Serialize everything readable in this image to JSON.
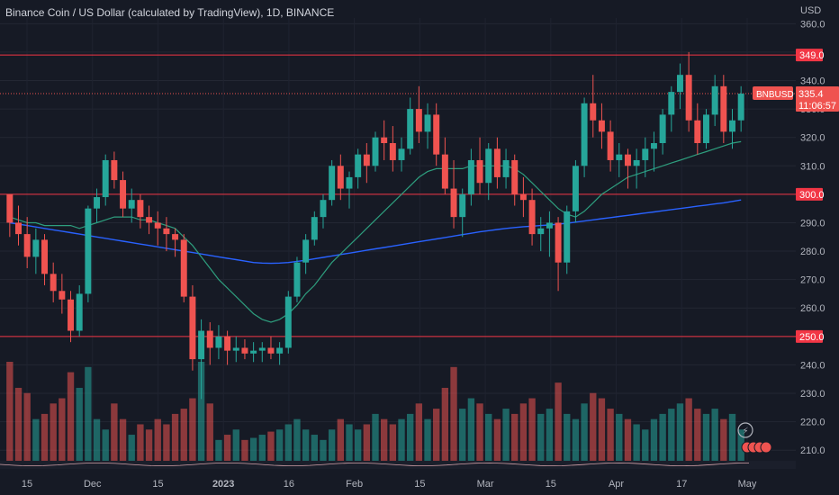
{
  "header": {
    "title": "Binance Coin / US Dollar (calculated by TradingView), 1D, BINANCE",
    "currency": "USD"
  },
  "colors": {
    "background": "#161a25",
    "up": "#26a69a",
    "down": "#ef5350",
    "level_line": "#f23645",
    "ma_short": "#2e9e7e",
    "ma_long": "#2962ff",
    "axis_text": "#b2b5be"
  },
  "price_tag": {
    "symbol": "BNBUSD",
    "price": "335.4",
    "countdown": "11:06:57"
  },
  "chart_data": {
    "type": "candlestick",
    "symbol": "BNBUSD",
    "exchange": "BINANCE",
    "interval": "1D",
    "ylim": [
      205,
      362
    ],
    "y_ticks": [
      210,
      220,
      230,
      240,
      250,
      260,
      270,
      280,
      290,
      300,
      310,
      320,
      330,
      340,
      350,
      360
    ],
    "x_ticks": [
      "15",
      "Dec",
      "15",
      "2023",
      "16",
      "Feb",
      "15",
      "Mar",
      "15",
      "Apr",
      "17",
      "May"
    ],
    "levels": [
      {
        "value": 349.0,
        "label": "349.0"
      },
      {
        "value": 300.0,
        "label": "300.0"
      },
      {
        "value": 250.0,
        "label": "250.0"
      }
    ],
    "last_price": 335.4,
    "series": [
      {
        "type": "ohlc",
        "values": [
          [
            300,
            300,
            285,
            290
          ],
          [
            290,
            296,
            282,
            286
          ],
          [
            286,
            292,
            274,
            278
          ],
          [
            278,
            288,
            272,
            284
          ],
          [
            284,
            286,
            268,
            272
          ],
          [
            272,
            276,
            262,
            266
          ],
          [
            266,
            272,
            258,
            263
          ],
          [
            263,
            266,
            248,
            252
          ],
          [
            252,
            268,
            250,
            265
          ],
          [
            265,
            296,
            262,
            295
          ],
          [
            295,
            302,
            290,
            299
          ],
          [
            299,
            314,
            296,
            312
          ],
          [
            312,
            315,
            302,
            305
          ],
          [
            305,
            308,
            292,
            295
          ],
          [
            295,
            302,
            290,
            298
          ],
          [
            298,
            300,
            288,
            292
          ],
          [
            292,
            296,
            286,
            290
          ],
          [
            290,
            294,
            282,
            288
          ],
          [
            288,
            292,
            280,
            286
          ],
          [
            286,
            288,
            278,
            284
          ],
          [
            284,
            286,
            262,
            264
          ],
          [
            264,
            268,
            238,
            242
          ],
          [
            242,
            256,
            228,
            252
          ],
          [
            252,
            255,
            240,
            246
          ],
          [
            246,
            254,
            242,
            250
          ],
          [
            250,
            252,
            240,
            245
          ],
          [
            245,
            250,
            241,
            246
          ],
          [
            246,
            249,
            242,
            244
          ],
          [
            244,
            248,
            241,
            245
          ],
          [
            245,
            248,
            241,
            246
          ],
          [
            246,
            250,
            242,
            244
          ],
          [
            244,
            248,
            240,
            246
          ],
          [
            246,
            266,
            244,
            264
          ],
          [
            264,
            278,
            262,
            276
          ],
          [
            276,
            286,
            272,
            284
          ],
          [
            284,
            294,
            282,
            292
          ],
          [
            292,
            300,
            288,
            298
          ],
          [
            298,
            312,
            296,
            310
          ],
          [
            310,
            314,
            298,
            302
          ],
          [
            302,
            308,
            295,
            306
          ],
          [
            306,
            316,
            302,
            314
          ],
          [
            314,
            318,
            304,
            310
          ],
          [
            310,
            322,
            308,
            320
          ],
          [
            320,
            326,
            312,
            318
          ],
          [
            318,
            324,
            308,
            312
          ],
          [
            312,
            320,
            308,
            316
          ],
          [
            316,
            334,
            314,
            330
          ],
          [
            330,
            338,
            318,
            322
          ],
          [
            322,
            332,
            316,
            328
          ],
          [
            328,
            332,
            310,
            314
          ],
          [
            314,
            320,
            300,
            302
          ],
          [
            302,
            312,
            288,
            292
          ],
          [
            292,
            302,
            285,
            300
          ],
          [
            300,
            316,
            296,
            312
          ],
          [
            312,
            320,
            300,
            304
          ],
          [
            304,
            318,
            298,
            316
          ],
          [
            316,
            320,
            302,
            306
          ],
          [
            306,
            316,
            302,
            312
          ],
          [
            312,
            314,
            296,
            300
          ],
          [
            300,
            306,
            292,
            298
          ],
          [
            298,
            302,
            282,
            286
          ],
          [
            286,
            292,
            280,
            288
          ],
          [
            288,
            294,
            278,
            290
          ],
          [
            290,
            292,
            266,
            276
          ],
          [
            276,
            296,
            272,
            294
          ],
          [
            294,
            312,
            290,
            310
          ],
          [
            310,
            334,
            306,
            332
          ],
          [
            332,
            342,
            320,
            326
          ],
          [
            326,
            332,
            316,
            322
          ],
          [
            322,
            326,
            308,
            312
          ],
          [
            312,
            318,
            306,
            314
          ],
          [
            314,
            316,
            302,
            310
          ],
          [
            310,
            316,
            302,
            312
          ],
          [
            312,
            320,
            306,
            316
          ],
          [
            316,
            322,
            308,
            318
          ],
          [
            318,
            330,
            314,
            328
          ],
          [
            328,
            338,
            322,
            336
          ],
          [
            336,
            346,
            330,
            342
          ],
          [
            342,
            350,
            322,
            326
          ],
          [
            326,
            332,
            314,
            318
          ],
          [
            318,
            330,
            316,
            328
          ],
          [
            328,
            342,
            324,
            338
          ],
          [
            338,
            342,
            318,
            322
          ],
          [
            322,
            330,
            316,
            326
          ],
          [
            326,
            338,
            322,
            335.4
          ]
        ]
      },
      {
        "type": "sma",
        "period": "short",
        "values": [
          292,
          291,
          290,
          290,
          289,
          289,
          289,
          289,
          288,
          289,
          290,
          291,
          292,
          292,
          292,
          291,
          291,
          290,
          289,
          288,
          285,
          282,
          278,
          274,
          270,
          267,
          264,
          261,
          258,
          256,
          255,
          256,
          258,
          261,
          265,
          268,
          272,
          276,
          279,
          282,
          285,
          288,
          291,
          294,
          297,
          300,
          303,
          306,
          308,
          309,
          309,
          309,
          309,
          310,
          310,
          310,
          310,
          310,
          309,
          307,
          304,
          301,
          298,
          295,
          293,
          292,
          294,
          297,
          300,
          302,
          304,
          306,
          307,
          308,
          309,
          310,
          311,
          312,
          313,
          314,
          315,
          316,
          317,
          318,
          318.5
        ]
      },
      {
        "type": "sma",
        "period": "long",
        "values": [
          290,
          289.5,
          289,
          288.5,
          288,
          287.5,
          287,
          286.5,
          286,
          285.5,
          285,
          284.5,
          284,
          283.5,
          283,
          282.5,
          282,
          281.5,
          281,
          280.5,
          280,
          279.5,
          279,
          278.5,
          278,
          277.5,
          277,
          276.5,
          276,
          275.8,
          275.7,
          275.8,
          276,
          276.4,
          276.8,
          277.3,
          277.8,
          278.3,
          278.8,
          279.3,
          279.8,
          280.3,
          280.8,
          281.3,
          281.8,
          282.3,
          282.8,
          283.3,
          283.8,
          284.3,
          284.8,
          285.3,
          285.8,
          286.3,
          286.8,
          287.2,
          287.6,
          288,
          288.3,
          288.6,
          288.8,
          289,
          289.2,
          289.5,
          289.8,
          290.2,
          290.6,
          291,
          291.4,
          291.8,
          292.2,
          292.6,
          293,
          293.4,
          293.8,
          294.2,
          294.6,
          295,
          295.4,
          295.8,
          296.2,
          296.6,
          297,
          297.5,
          298
        ]
      },
      {
        "type": "volume",
        "values": [
          95,
          70,
          65,
          40,
          45,
          55,
          60,
          85,
          70,
          90,
          40,
          30,
          55,
          40,
          25,
          35,
          30,
          40,
          35,
          45,
          50,
          60,
          95,
          55,
          20,
          25,
          30,
          20,
          22,
          25,
          28,
          30,
          35,
          40,
          30,
          25,
          20,
          30,
          40,
          35,
          30,
          35,
          45,
          40,
          35,
          40,
          45,
          55,
          40,
          50,
          70,
          90,
          50,
          60,
          55,
          45,
          40,
          50,
          45,
          55,
          60,
          45,
          50,
          75,
          45,
          40,
          55,
          65,
          60,
          50,
          45,
          40,
          35,
          30,
          40,
          45,
          50,
          55,
          60,
          50,
          45,
          50,
          40,
          45,
          30
        ]
      }
    ]
  }
}
